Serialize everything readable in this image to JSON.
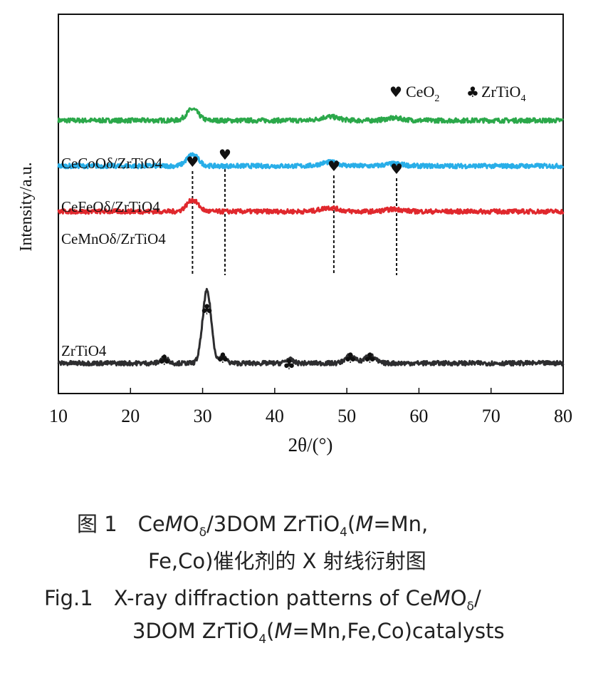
{
  "chart_data": {
    "type": "line",
    "xlabel": "2θ/(°)",
    "ylabel": "Intensity/a.u.",
    "xlim": [
      10,
      80
    ],
    "xticks": [
      10,
      20,
      30,
      40,
      50,
      60,
      70,
      80
    ],
    "y_scale": "arbitrary, vertically stacked traces",
    "grid": false,
    "legend": {
      "position": "top-right",
      "items": [
        {
          "symbol": "♥",
          "label": "CeO2"
        },
        {
          "symbol": "♣",
          "label": "ZrTiO4"
        }
      ]
    },
    "series": [
      {
        "name": "CeCoOδ/ZrTiO4",
        "color": "#2ba84a",
        "baseline": 0.72,
        "peaks": [
          {
            "x": 28.6,
            "h": 0.03,
            "w": 0.8
          },
          {
            "x": 47.6,
            "h": 0.01,
            "w": 1.2
          },
          {
            "x": 56.6,
            "h": 0.006,
            "w": 1.2
          }
        ]
      },
      {
        "name": "CeFeOδ/ZrTiO4",
        "color": "#29aee8",
        "baseline": 0.6,
        "peaks": [
          {
            "x": 28.6,
            "h": 0.03,
            "w": 0.8
          },
          {
            "x": 47.6,
            "h": 0.01,
            "w": 1.2
          },
          {
            "x": 56.6,
            "h": 0.006,
            "w": 1.2
          }
        ]
      },
      {
        "name": "CeMnOδ/ZrTiO4",
        "color": "#e0282d",
        "baseline": 0.48,
        "peaks": [
          {
            "x": 28.6,
            "h": 0.03,
            "w": 0.8
          },
          {
            "x": 47.6,
            "h": 0.01,
            "w": 1.2
          },
          {
            "x": 56.6,
            "h": 0.006,
            "w": 1.2
          }
        ]
      },
      {
        "name": "ZrTiO4",
        "color": "#2d2d2f",
        "baseline": 0.08,
        "peaks": [
          {
            "x": 24.7,
            "h": 0.015,
            "w": 0.5
          },
          {
            "x": 30.6,
            "h": 0.19,
            "w": 0.6
          },
          {
            "x": 32.8,
            "h": 0.015,
            "w": 0.5
          },
          {
            "x": 42.0,
            "h": 0.01,
            "w": 0.5
          },
          {
            "x": 50.5,
            "h": 0.02,
            "w": 0.7
          },
          {
            "x": 53.2,
            "h": 0.02,
            "w": 0.7
          }
        ]
      }
    ],
    "annotations": {
      "ceo2_markers": [
        28.6,
        33.1,
        48.2,
        56.9
      ],
      "zrtio4_markers": [
        24.7,
        30.6,
        32.8,
        42.0,
        50.5,
        53.2
      ]
    }
  },
  "caption": {
    "cn_line1": "图 1　CeMOδ/3DOM ZrTiO4(M=Mn,",
    "cn_line2": "Fe,Co)催化剂的 X 射线衍射图",
    "en_line1": "Fig.1　X-ray diffraction patterns of CeMOδ/",
    "en_line2": "3DOM ZrTiO4(M=Mn,Fe,Co)catalysts"
  }
}
